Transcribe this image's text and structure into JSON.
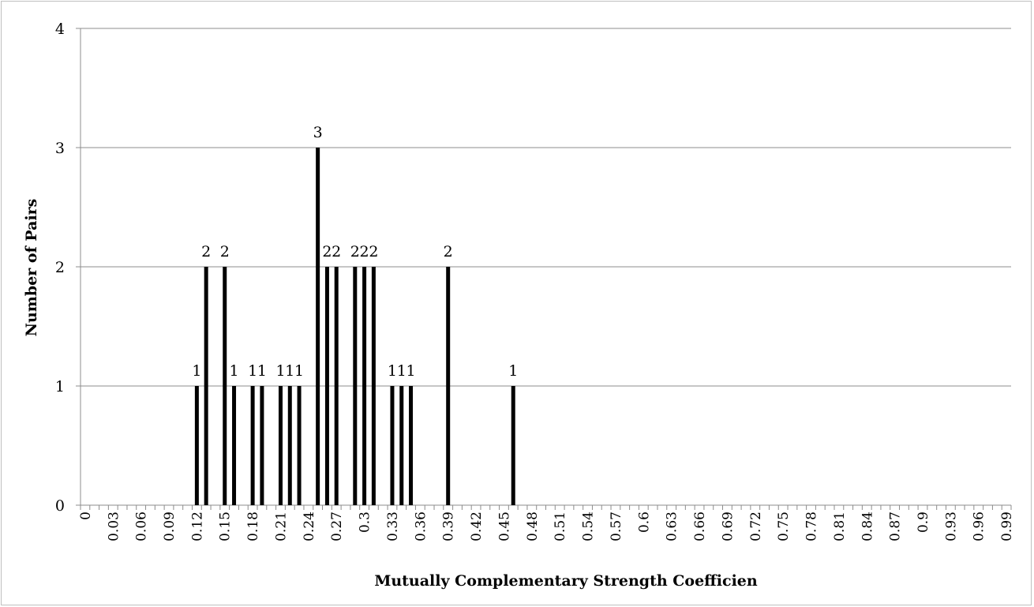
{
  "chart_data": {
    "type": "bar",
    "xlabel": "Mutually Complementary Strength Coefficien",
    "ylabel": "Number of Pairs",
    "ylim": [
      0,
      4
    ],
    "yticks": [
      0,
      1,
      2,
      3,
      4
    ],
    "grid": "horizontal",
    "legend": "none",
    "bar_color": "#000000",
    "x": [
      "0",
      "0.01",
      "0.02",
      "0.03",
      "0.04",
      "0.05",
      "0.06",
      "0.07",
      "0.08",
      "0.09",
      "0.1",
      "0.11",
      "0.12",
      "0.13",
      "0.14",
      "0.15",
      "0.16",
      "0.17",
      "0.18",
      "0.19",
      "0.2",
      "0.21",
      "0.22",
      "0.23",
      "0.24",
      "0.25",
      "0.26",
      "0.27",
      "0.28",
      "0.29",
      "0.3",
      "0.31",
      "0.32",
      "0.33",
      "0.34",
      "0.35",
      "0.36",
      "0.37",
      "0.38",
      "0.39",
      "0.4",
      "0.41",
      "0.42",
      "0.43",
      "0.44",
      "0.45",
      "0.46",
      "0.47",
      "0.48",
      "0.49",
      "0.5",
      "0.51",
      "0.52",
      "0.53",
      "0.54",
      "0.55",
      "0.56",
      "0.57",
      "0.58",
      "0.59",
      "0.6",
      "0.61",
      "0.62",
      "0.63",
      "0.64",
      "0.65",
      "0.66",
      "0.67",
      "0.68",
      "0.69",
      "0.7",
      "0.71",
      "0.72",
      "0.73",
      "0.74",
      "0.75",
      "0.76",
      "0.77",
      "0.78",
      "0.79",
      "0.8",
      "0.81",
      "0.82",
      "0.83",
      "0.84",
      "0.85",
      "0.86",
      "0.87",
      "0.88",
      "0.89",
      "0.9",
      "0.91",
      "0.92",
      "0.93",
      "0.94",
      "0.95",
      "0.96",
      "0.97",
      "0.98",
      "0.99"
    ],
    "tick_labels": [
      "0",
      "0.03",
      "0.06",
      "0.09",
      "0.12",
      "0.15",
      "0.18",
      "0.21",
      "0.24",
      "0.27",
      "0.3",
      "0.33",
      "0.36",
      "0.39",
      "0.42",
      "0.45",
      "0.48",
      "0.51",
      "0.54",
      "0.57",
      "0.6",
      "0.63",
      "0.66",
      "0.69",
      "0.72",
      "0.75",
      "0.78",
      "0.81",
      "0.84",
      "0.87",
      "0.9",
      "0.93",
      "0.96",
      "0.99"
    ],
    "values": [
      0,
      0,
      0,
      0,
      0,
      0,
      0,
      0,
      0,
      0,
      0,
      0,
      1,
      2,
      0,
      2,
      1,
      0,
      1,
      1,
      0,
      1,
      1,
      1,
      0,
      3,
      2,
      2,
      0,
      2,
      2,
      2,
      0,
      1,
      1,
      1,
      0,
      0,
      0,
      2,
      0,
      0,
      0,
      0,
      0,
      0,
      1,
      0,
      0,
      0,
      0,
      0,
      0,
      0,
      0,
      0,
      0,
      0,
      0,
      0,
      0,
      0,
      0,
      0,
      0,
      0,
      0,
      0,
      0,
      0,
      0,
      0,
      0,
      0,
      0,
      0,
      0,
      0,
      0,
      0,
      0,
      0,
      0,
      0,
      0,
      0,
      0,
      0,
      0,
      0,
      0,
      0,
      0,
      0,
      0,
      0,
      0,
      0,
      0,
      0
    ],
    "data_labels": [
      {
        "x": "0.12",
        "text": "1"
      },
      {
        "x": "0.13",
        "text": "2"
      },
      {
        "x": "0.15",
        "text": "2"
      },
      {
        "x": "0.16",
        "text": "1"
      },
      {
        "x": "0.18",
        "text": "1"
      },
      {
        "x": "0.19",
        "text": "1"
      },
      {
        "x": "0.21",
        "text": "1"
      },
      {
        "x": "0.22",
        "text": "1"
      },
      {
        "x": "0.23",
        "text": "1"
      },
      {
        "x": "0.25",
        "text": "3"
      },
      {
        "x": "0.26",
        "text": "2"
      },
      {
        "x": "0.27",
        "text": "2"
      },
      {
        "x": "0.29",
        "text": "2"
      },
      {
        "x": "0.3",
        "text": "2"
      },
      {
        "x": "0.31",
        "text": "2"
      },
      {
        "x": "0.33",
        "text": "1"
      },
      {
        "x": "0.34",
        "text": "1"
      },
      {
        "x": "0.35",
        "text": "1"
      },
      {
        "x": "0.39",
        "text": "2"
      },
      {
        "x": "0.46",
        "text": "1"
      }
    ]
  }
}
